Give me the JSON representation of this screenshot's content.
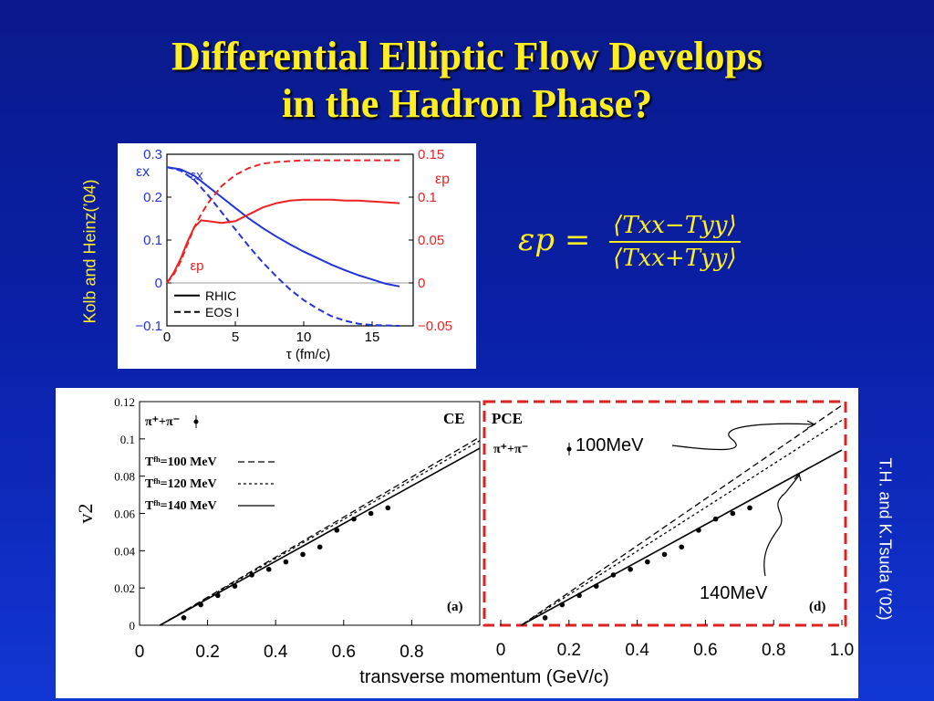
{
  "slide": {
    "title_line1": "Differential Elliptic Flow Develops",
    "title_line2": "in the Hadron Phase?",
    "left_credit": "Kolb and Heinz(’04)",
    "right_credit": "T.H. and K.Tsuda (’02)",
    "formula_lhs": "εp =",
    "formula_num": "⟨Txx−Tyy⟩",
    "formula_den": "⟨Txx+Tyy⟩",
    "annotation_100": "100MeV",
    "annotation_140": "140MeV",
    "colors": {
      "title": "#ffee22",
      "background": "#0a1fa6",
      "blue_curve": "#2233dd",
      "red_curve": "#ee2222",
      "frame_dashed": "#dd2222"
    }
  },
  "chart_data": [
    {
      "type": "line",
      "xlabel": "τ (fm/c)",
      "ylabel_left": "εx",
      "ylabel_right": "εp",
      "xlim": [
        0,
        18
      ],
      "ylim_left": [
        -0.1,
        0.3
      ],
      "ylim_right": [
        -0.05,
        0.15
      ],
      "x_ticks": [
        "0",
        "5",
        "10",
        "15"
      ],
      "y_left_ticks": [
        "−0.1",
        "0",
        "0.1",
        "0.2",
        "0.3"
      ],
      "y_right_ticks": [
        "−0.05",
        "0",
        "0.05",
        "0.1",
        "0.15"
      ],
      "curve_labels": [
        "εx",
        "εp"
      ],
      "legend": [
        {
          "label": "RHIC",
          "style": "solid"
        },
        {
          "label": "EOS I",
          "style": "dashed"
        }
      ],
      "series": [
        {
          "axis": "left",
          "quantity": "εx",
          "style": "solid",
          "color": "#2233dd",
          "x": [
            0,
            1,
            2,
            3,
            4,
            5,
            6,
            7,
            8,
            9,
            10,
            11,
            12,
            13,
            14,
            15,
            16,
            17
          ],
          "y": [
            0.27,
            0.265,
            0.25,
            0.225,
            0.2,
            0.175,
            0.15,
            0.128,
            0.108,
            0.09,
            0.073,
            0.058,
            0.043,
            0.03,
            0.018,
            0.008,
            -0.002,
            -0.008
          ]
        },
        {
          "axis": "left",
          "quantity": "εx",
          "style": "dashed",
          "color": "#2233dd",
          "x": [
            0,
            1,
            2,
            3,
            4,
            5,
            6,
            7,
            8,
            9,
            10,
            11,
            12,
            13,
            14,
            15,
            16,
            17
          ],
          "y": [
            0.27,
            0.262,
            0.24,
            0.205,
            0.165,
            0.125,
            0.085,
            0.048,
            0.015,
            -0.015,
            -0.04,
            -0.06,
            -0.077,
            -0.088,
            -0.095,
            -0.098,
            -0.099,
            -0.1
          ]
        },
        {
          "axis": "right",
          "quantity": "εp",
          "style": "solid",
          "color": "#ee2222",
          "x": [
            0,
            0.5,
            1,
            1.5,
            2,
            2.5,
            3,
            4,
            5,
            6,
            7,
            8,
            9,
            10,
            11,
            12,
            13,
            14,
            15,
            16,
            17
          ],
          "y": [
            0,
            0.012,
            0.028,
            0.048,
            0.065,
            0.073,
            0.072,
            0.07,
            0.072,
            0.08,
            0.088,
            0.093,
            0.096,
            0.097,
            0.097,
            0.097,
            0.096,
            0.096,
            0.095,
            0.094,
            0.093
          ]
        },
        {
          "axis": "right",
          "quantity": "εp",
          "style": "dashed",
          "color": "#ee2222",
          "x": [
            0,
            0.5,
            1,
            1.5,
            2,
            2.5,
            3,
            4,
            5,
            6,
            7,
            8,
            9,
            10,
            11,
            12,
            13,
            14,
            15,
            16,
            17
          ],
          "y": [
            0,
            0.01,
            0.025,
            0.045,
            0.065,
            0.08,
            0.093,
            0.113,
            0.126,
            0.134,
            0.139,
            0.141,
            0.142,
            0.143,
            0.143,
            0.143,
            0.143,
            0.143,
            0.143,
            0.143,
            0.143
          ]
        }
      ]
    },
    {
      "type": "line",
      "panel": "CE",
      "panel_tag": "(a)",
      "ylabel": "v2",
      "xlabel": "transverse momentum (GeV/c)",
      "xlim": [
        0,
        1.0
      ],
      "ylim": [
        0,
        0.12
      ],
      "x_ticks": [
        "0",
        "0.2",
        "0.4",
        "0.6",
        "0.8"
      ],
      "y_ticks": [
        "0",
        "0.02",
        "0.04",
        "0.06",
        "0.08",
        "0.1",
        "0.12"
      ],
      "data_legend": "π⁺+π⁻",
      "legend": [
        "Tᶠʰ=100 MeV",
        "Tᶠʰ=120 MeV",
        "Tᶠʰ=140 MeV"
      ],
      "series": [
        {
          "name": "Tᶠʰ=100 MeV",
          "style": "dashed",
          "x": [
            0.06,
            1.0
          ],
          "y": [
            0,
            0.101
          ]
        },
        {
          "name": "Tᶠʰ=120 MeV",
          "style": "dotted",
          "x": [
            0.06,
            1.0
          ],
          "y": [
            0,
            0.099
          ]
        },
        {
          "name": "Tᶠʰ=140 MeV",
          "style": "solid",
          "x": [
            0.06,
            1.0
          ],
          "y": [
            0,
            0.095
          ]
        }
      ],
      "points": {
        "x": [
          0.13,
          0.18,
          0.23,
          0.28,
          0.33,
          0.38,
          0.43,
          0.48,
          0.53,
          0.58,
          0.63,
          0.68,
          0.73
        ],
        "y": [
          0.004,
          0.011,
          0.016,
          0.021,
          0.027,
          0.03,
          0.034,
          0.038,
          0.042,
          0.051,
          0.057,
          0.06,
          0.063
        ]
      }
    },
    {
      "type": "line",
      "panel": "PCE",
      "panel_tag": "(d)",
      "xlim": [
        0,
        1.0
      ],
      "ylim": [
        0,
        0.12
      ],
      "x_ticks": [
        "0",
        "0.2",
        "0.4",
        "0.6",
        "0.8",
        "1.0"
      ],
      "data_legend": "π⁺+π⁻",
      "series": [
        {
          "style": "dashed",
          "x": [
            0.06,
            1.0
          ],
          "y": [
            0,
            0.118
          ]
        },
        {
          "style": "dotted",
          "x": [
            0.06,
            1.0
          ],
          "y": [
            0,
            0.11
          ]
        },
        {
          "style": "solid",
          "x": [
            0.06,
            1.0
          ],
          "y": [
            0,
            0.094
          ]
        }
      ],
      "points": {
        "x": [
          0.13,
          0.18,
          0.23,
          0.28,
          0.33,
          0.38,
          0.43,
          0.48,
          0.53,
          0.58,
          0.63,
          0.68,
          0.73
        ],
        "y": [
          0.004,
          0.011,
          0.016,
          0.021,
          0.027,
          0.03,
          0.034,
          0.038,
          0.042,
          0.051,
          0.057,
          0.06,
          0.063
        ]
      }
    }
  ]
}
